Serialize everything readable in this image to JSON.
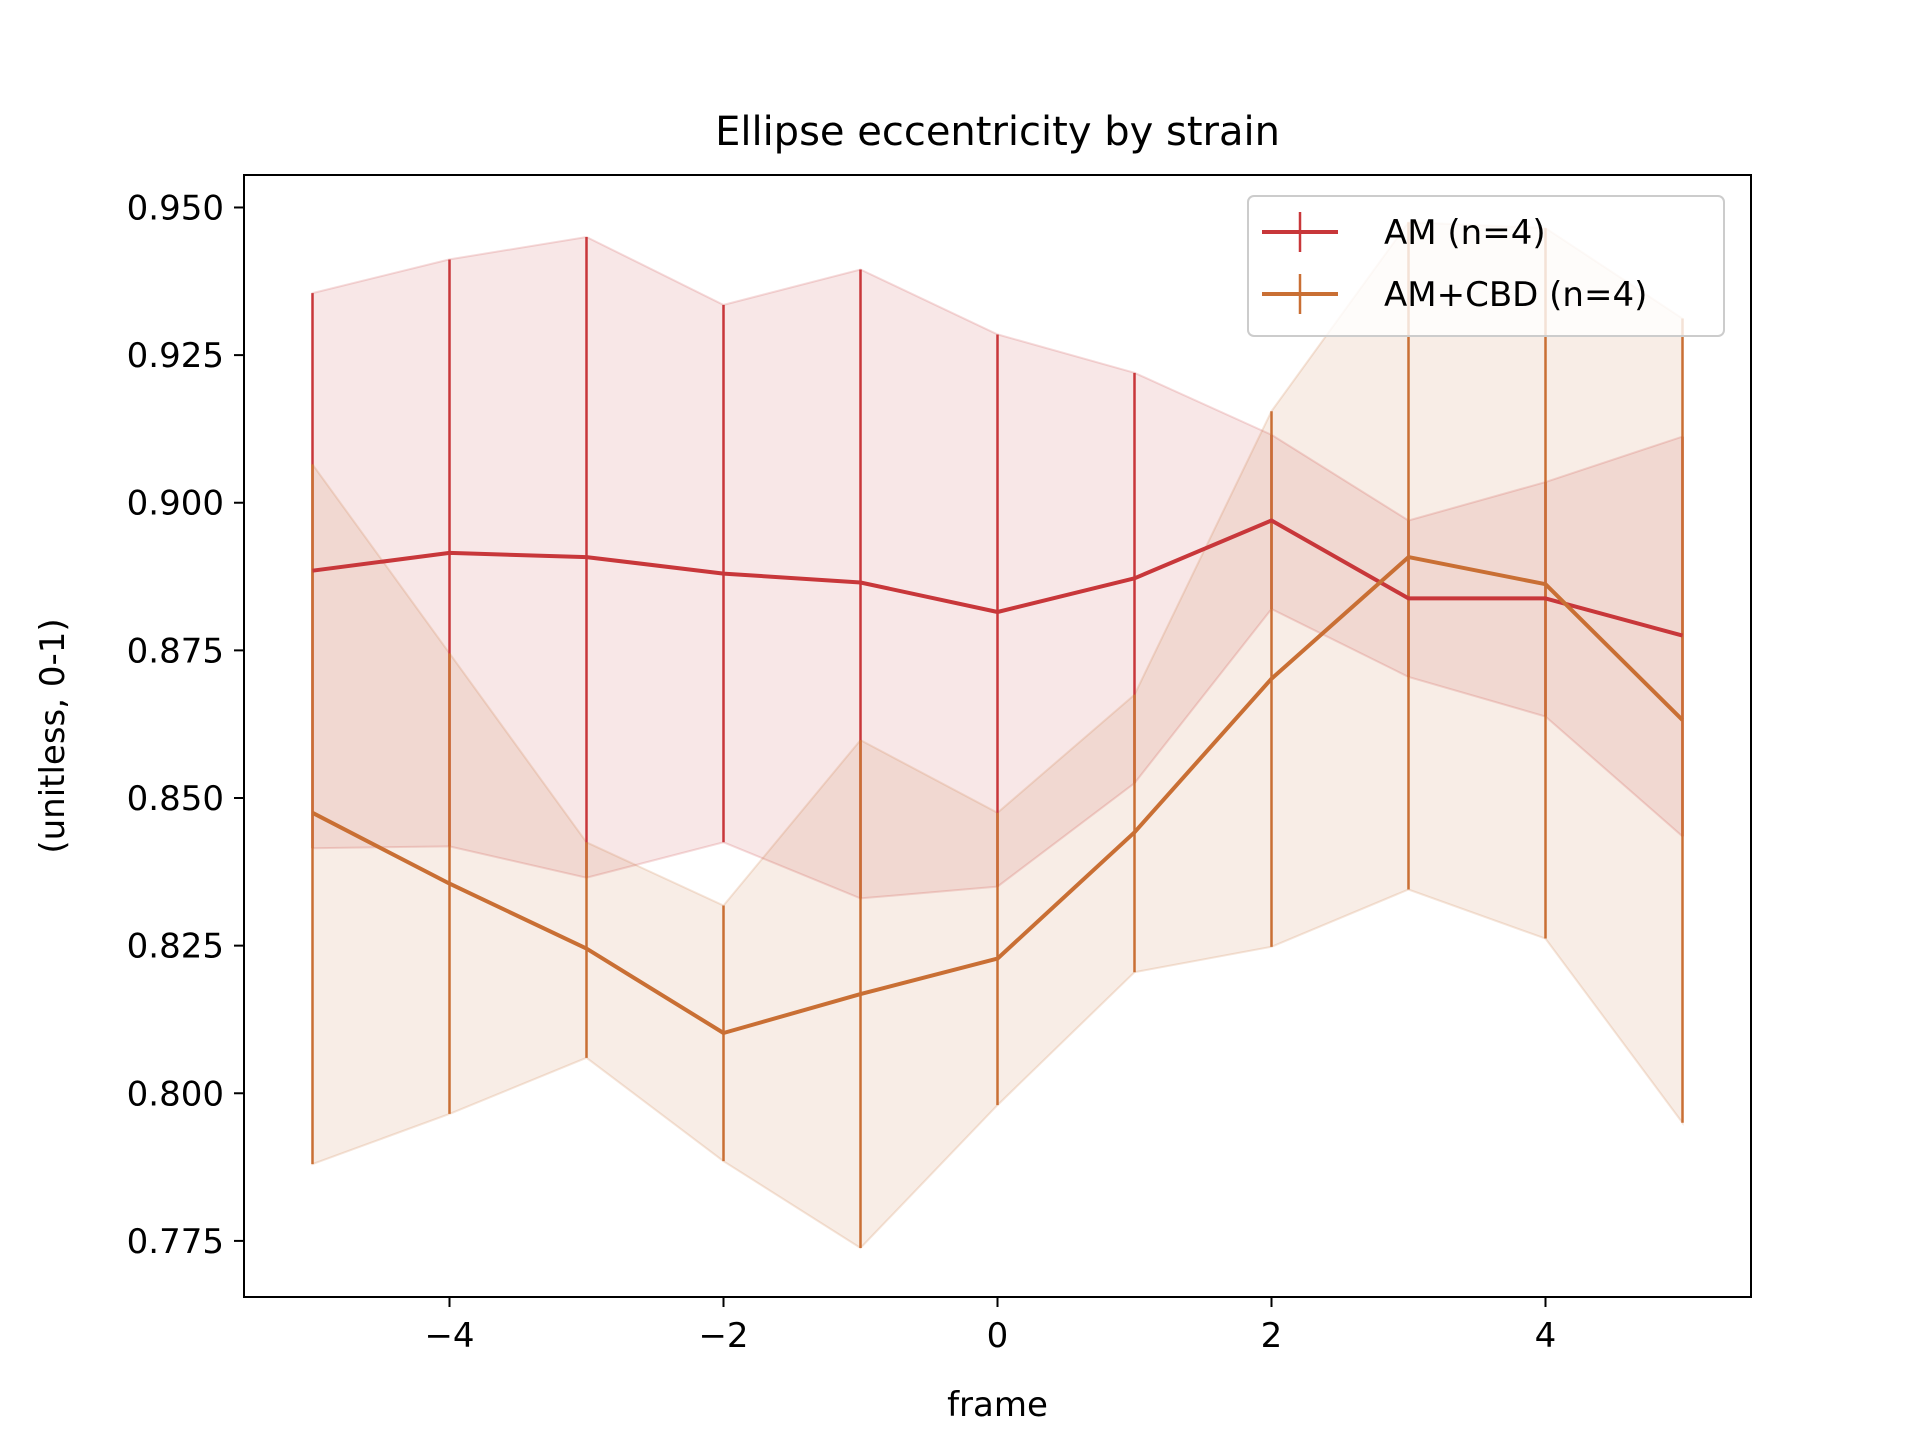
{
  "chart_data": {
    "type": "line",
    "title": "Ellipse eccentricity by strain",
    "xlabel": "frame",
    "ylabel": "(unitless, 0-1)",
    "xlim": [
      -5.5,
      5.5
    ],
    "ylim": [
      0.7655,
      0.9555
    ],
    "xticks": [
      -4,
      -2,
      0,
      2,
      4
    ],
    "xtick_labels": [
      "−4",
      "−2",
      "0",
      "2",
      "4"
    ],
    "yticks": [
      0.775,
      0.8,
      0.825,
      0.85,
      0.875,
      0.9,
      0.925,
      0.95
    ],
    "ytick_labels": [
      "0.775",
      "0.800",
      "0.825",
      "0.850",
      "0.875",
      "0.900",
      "0.925",
      "0.950"
    ],
    "x": [
      -5,
      -4,
      -3,
      -2,
      -1,
      0,
      1,
      2,
      3,
      4,
      5
    ],
    "series": [
      {
        "name": "AM (n=4)",
        "color": "#c8373a",
        "values": [
          0.8885,
          0.8915,
          0.8908,
          0.888,
          0.8865,
          0.8815,
          0.8872,
          0.897,
          0.8838,
          0.8838,
          0.8775
        ],
        "band_lower": [
          0.8415,
          0.8418,
          0.8365,
          0.8425,
          0.833,
          0.835,
          0.8525,
          0.882,
          0.8705,
          0.8638,
          0.8435
        ],
        "band_upper": [
          0.9355,
          0.9412,
          0.945,
          0.9335,
          0.9395,
          0.9285,
          0.922,
          0.9115,
          0.897,
          0.9035,
          0.9112
        ],
        "err_lower": [
          0.8415,
          0.8418,
          0.8365,
          0.8425,
          0.833,
          0.835,
          0.8525,
          0.882,
          0.8705,
          0.8638,
          0.8435
        ],
        "err_upper": [
          0.9355,
          0.9412,
          0.945,
          0.9335,
          0.9395,
          0.9285,
          0.922,
          0.9115,
          0.897,
          0.9035,
          0.9112
        ]
      },
      {
        "name": "AM+CBD (n=4)",
        "color": "#c96f34",
        "values": [
          0.8475,
          0.8355,
          0.8245,
          0.8102,
          0.8168,
          0.8228,
          0.8442,
          0.8702,
          0.8908,
          0.8862,
          0.8632
        ],
        "band_lower": [
          0.788,
          0.7965,
          0.806,
          0.7885,
          0.7738,
          0.798,
          0.8205,
          0.8248,
          0.8345,
          0.8262,
          0.795
        ],
        "band_upper": [
          0.9065,
          0.8745,
          0.8425,
          0.8318,
          0.8598,
          0.8475,
          0.8675,
          0.9155,
          0.9475,
          0.9465,
          0.9312
        ],
        "err_lower": [
          0.788,
          0.7965,
          0.806,
          0.7885,
          0.7738,
          0.798,
          0.8205,
          0.8248,
          0.8345,
          0.8262,
          0.795
        ],
        "err_upper": [
          0.9065,
          0.8745,
          0.8425,
          0.8318,
          0.8598,
          0.8475,
          0.8675,
          0.9155,
          0.9475,
          0.9465,
          0.9312
        ]
      }
    ],
    "legend_position": "top-right",
    "grid": false
  }
}
